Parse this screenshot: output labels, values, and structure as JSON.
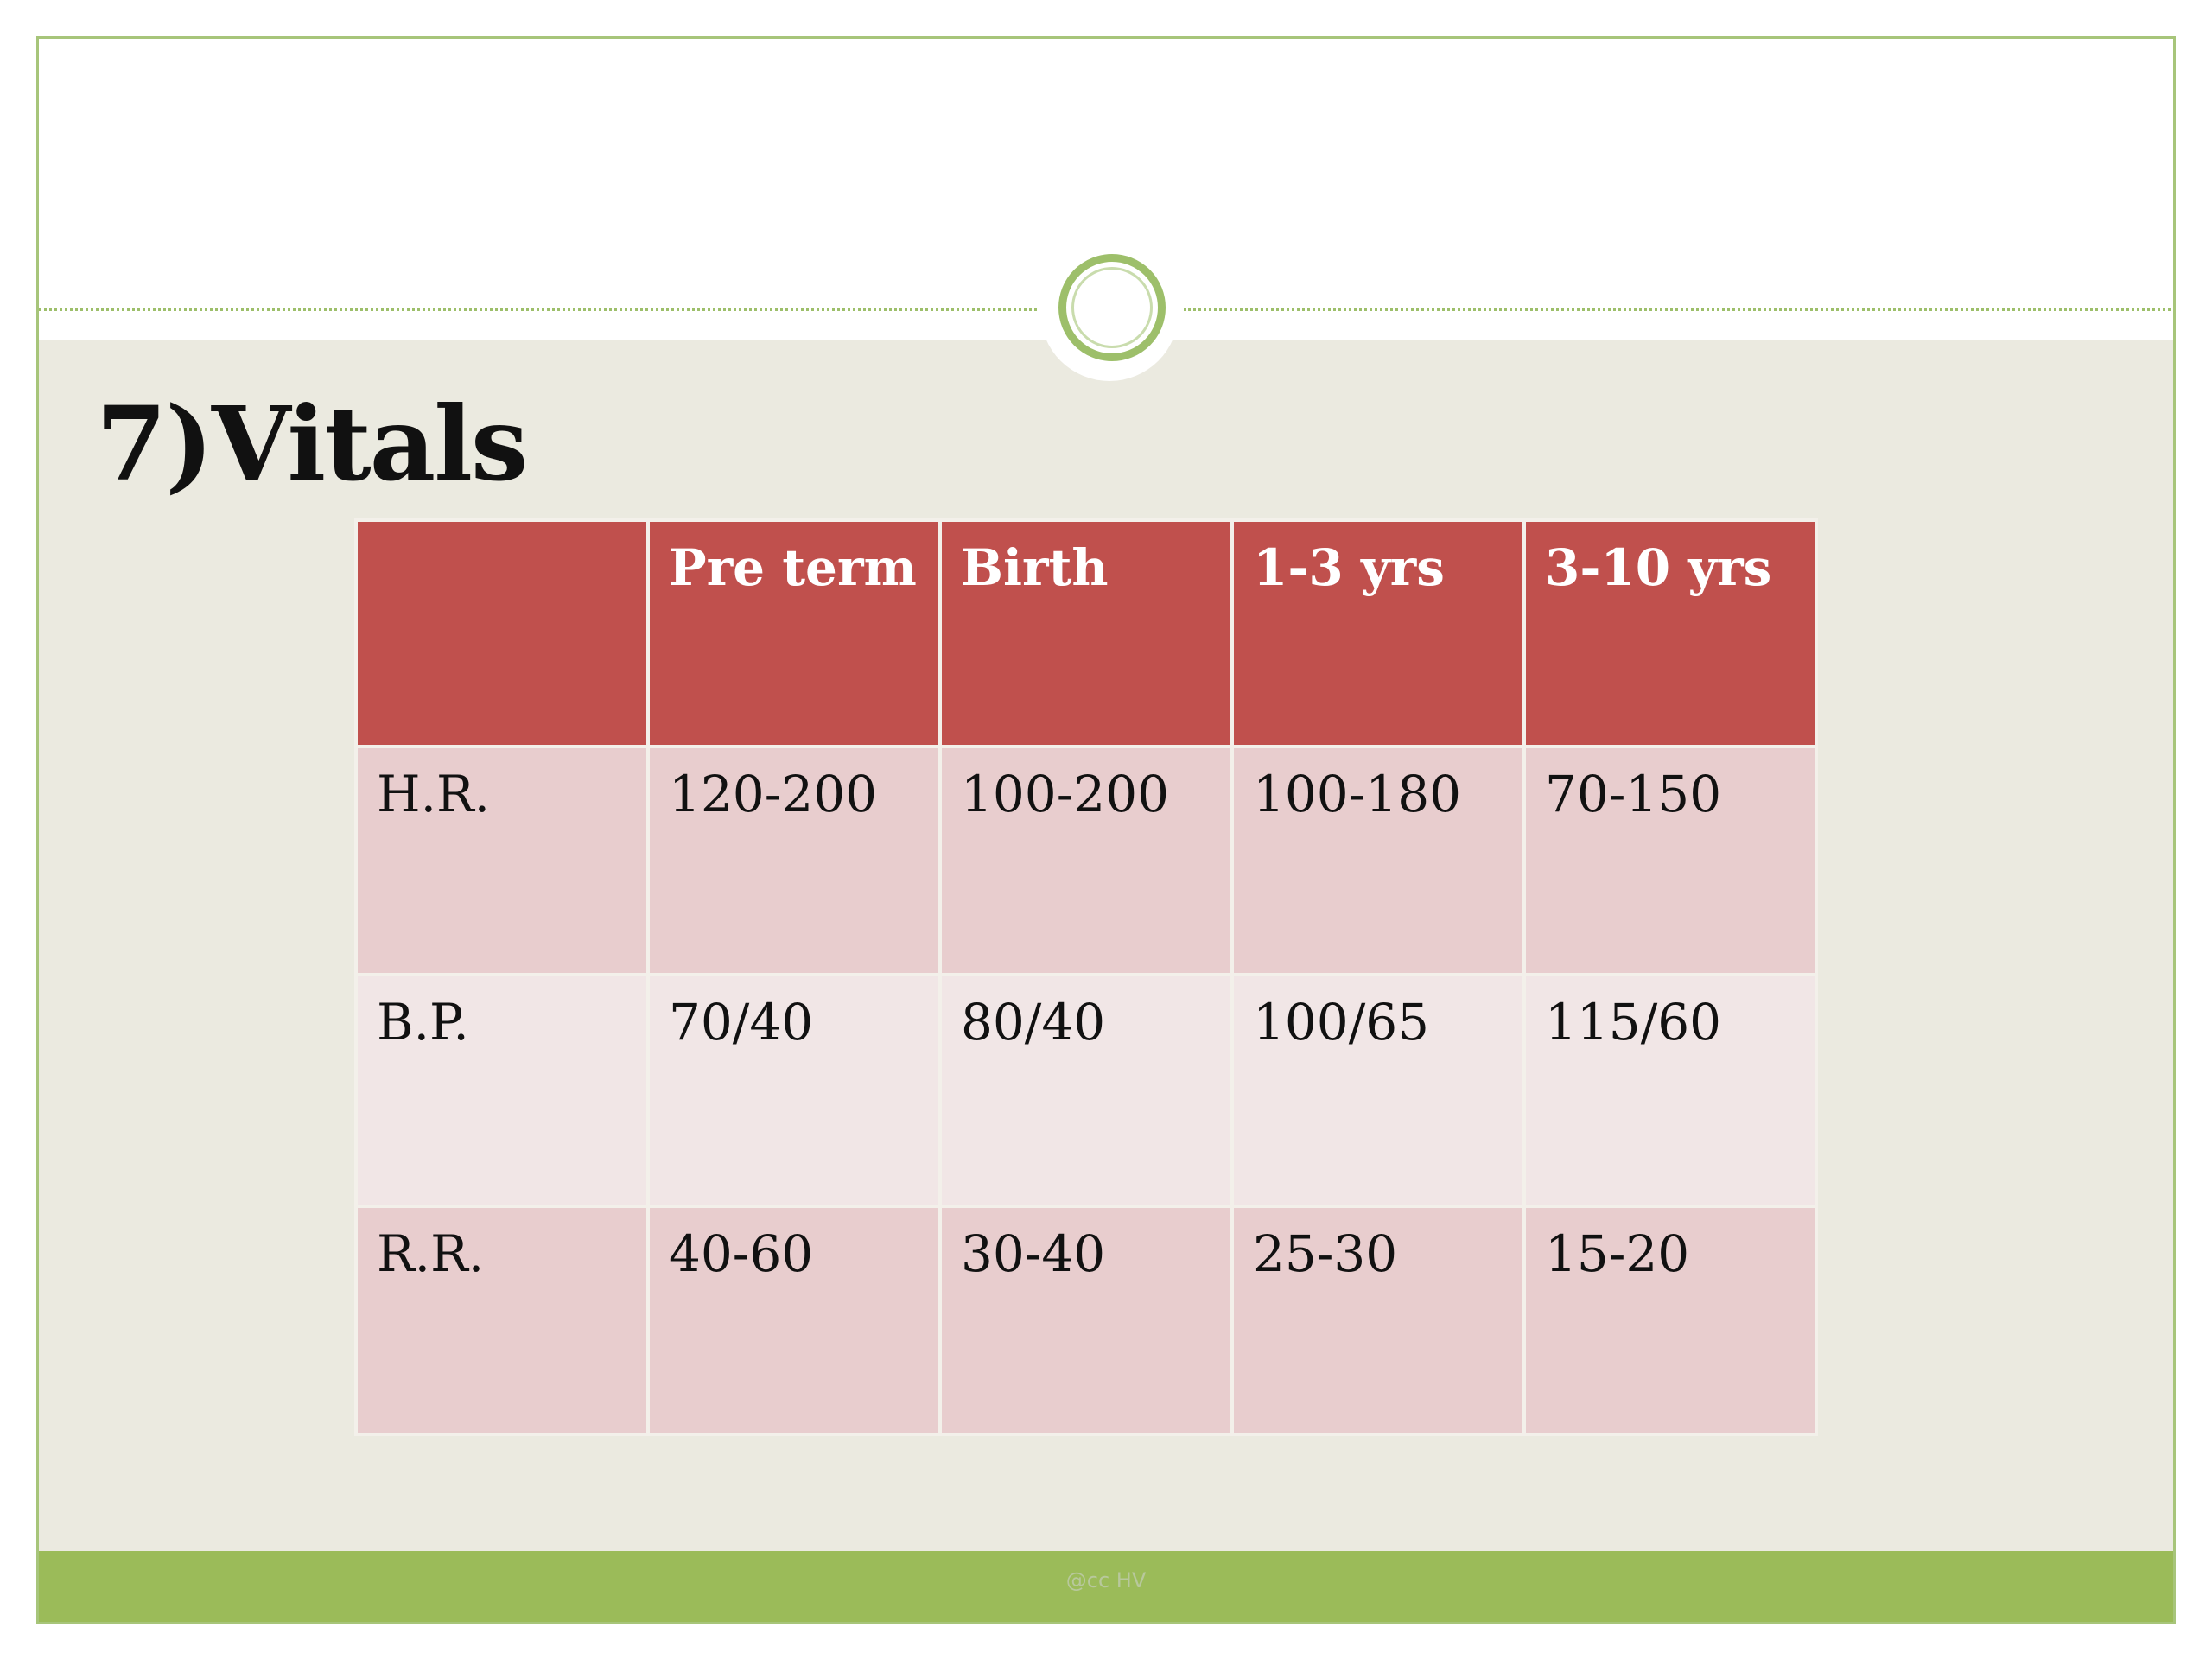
{
  "slide": {
    "title": "7)Vitals",
    "footer": "@cc HV"
  },
  "table": {
    "headers": [
      "",
      "Pre term",
      "Birth",
      "1-3 yrs",
      "3-10 yrs"
    ],
    "rows": [
      {
        "label": "H.R.",
        "values": [
          "120-200",
          "100-200",
          "100-180",
          "70-150"
        ]
      },
      {
        "label": "B.P.",
        "values": [
          "70/40",
          "80/40",
          "100/65",
          "115/60"
        ]
      },
      {
        "label": "R.R.",
        "values": [
          "40-60",
          "30-40",
          "25-30",
          "15-20"
        ]
      }
    ]
  },
  "colors": {
    "header": "#c0504d",
    "row_dark": "#e8cdce",
    "row_light": "#f1e6e6",
    "accent_green": "#9bbb59",
    "background": "#ebeae0"
  }
}
